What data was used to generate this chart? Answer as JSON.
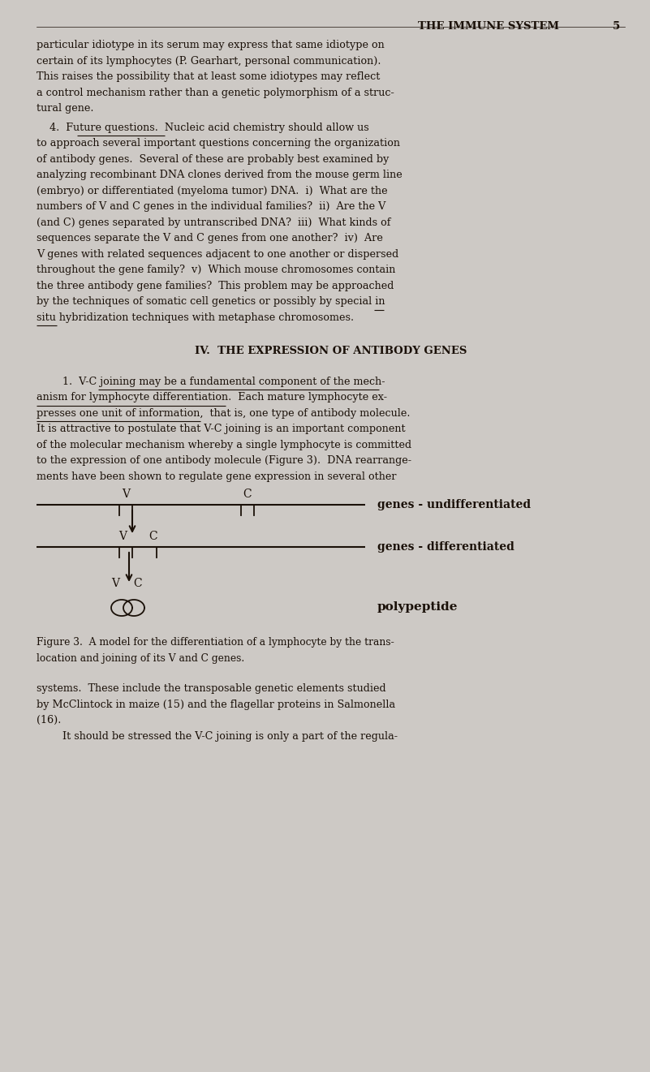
{
  "bg_color": "#cdc9c5",
  "text_color": "#1a1008",
  "page_width": 8.01,
  "page_height": 13.21,
  "header_title": "THE IMMUNE SYSTEM",
  "header_page": "5",
  "para1_lines": [
    "particular idiotype in its serum may express that same idiotype on",
    "certain of its lymphocytes (P. Gearhart, personal communication).",
    "This raises the possibility that at least some idiotypes may reflect",
    "a control mechanism rather than a genetic polymorphism of a struc-",
    "tural gene."
  ],
  "para2_lines": [
    "    4.  Future questions.  Nucleic acid chemistry should allow us",
    "to approach several important questions concerning the organization",
    "of antibody genes.  Several of these are probably best examined by",
    "analyzing recombinant DNA clones derived from the mouse germ line",
    "(embryo) or differentiated (myeloma tumor) DNA.  i)  What are the",
    "numbers of V and C genes in the individual families?  ii)  Are the V",
    "(and C) genes separated by untranscribed DNA?  iii)  What kinds of",
    "sequences separate the V and C genes from one another?  iv)  Are",
    "V genes with related sequences adjacent to one another or dispersed",
    "throughout the gene family?  v)  Which mouse chromosomes contain",
    "the three antibody gene families?  This problem may be approached",
    "by the techniques of somatic cell genetics or possibly by special in",
    "situ hybridization techniques with metaphase chromosomes."
  ],
  "section_heading": "IV.  THE EXPRESSION OF ANTIBODY GENES",
  "para3_lines": [
    "        1.  V-C joining may be a fundamental component of the mech-",
    "anism for lymphocyte differentiation.  Each mature lymphocyte ex-",
    "presses one unit of information,  that is, one type of antibody molecule.",
    "It is attractive to postulate that V-C joining is an important component",
    "of the molecular mechanism whereby a single lymphocyte is committed",
    "to the expression of one antibody molecule (Figure 3).  DNA rearrange-",
    "ments have been shown to regulate gene expression in several other"
  ],
  "fig3_label1": "genes - undifferentiated",
  "fig3_label2": "genes - differentiated",
  "fig3_label3": "polypeptide",
  "figure_caption_lines": [
    "Figure 3.  A model for the differentiation of a lymphocyte by the trans-",
    "location and joining of its V and C genes."
  ],
  "para4_lines": [
    "systems.  These include the transposable genetic elements studied",
    "by McClintock in maize (15) and the flagellar proteins in Salmonella",
    "(16).",
    "        It should be stressed the V-C joining is only a part of the regula-"
  ]
}
